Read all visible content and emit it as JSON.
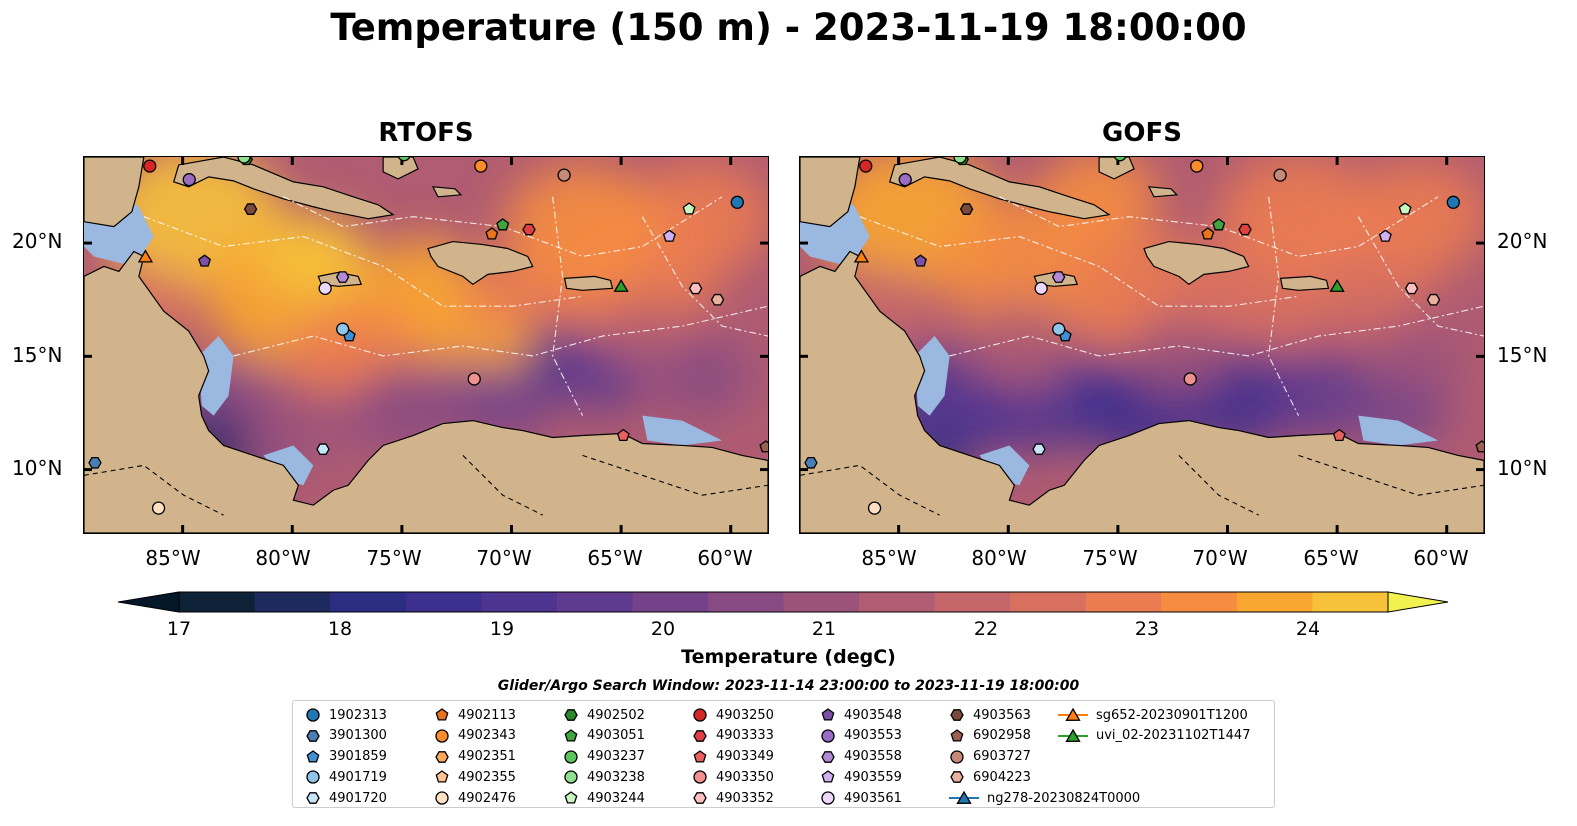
{
  "title": "Temperature (150 m) - 2023-11-19 18:00:00",
  "panels": [
    {
      "title": "RTOFS",
      "variant": "rtofs"
    },
    {
      "title": "GOFS",
      "variant": "gofs"
    }
  ],
  "axes": {
    "lon_ticks": [
      "85°W",
      "80°W",
      "75°W",
      "70°W",
      "65°W",
      "60°W"
    ],
    "lon_values": [
      -85,
      -80,
      -75,
      -70,
      -65,
      -60
    ],
    "lat_ticks": [
      "20°N",
      "15°N",
      "10°N"
    ],
    "lat_values": [
      20,
      15,
      10
    ],
    "lon_range": [
      -89.5,
      -58.3
    ],
    "lat_range": [
      7.2,
      23.8
    ]
  },
  "colorbar": {
    "label": "Temperature (degC)",
    "ticks": [
      "17",
      "18",
      "19",
      "20",
      "21",
      "22",
      "23",
      "24"
    ],
    "min": 17,
    "max": 24.5,
    "step": 0.5,
    "colors": [
      "#0d2236",
      "#1e2a5e",
      "#2a2d82",
      "#3c2f8e",
      "#4d3490",
      "#603a8e",
      "#744289",
      "#884a82",
      "#9c537a",
      "#b05c72",
      "#c4666a",
      "#d87060",
      "#ea7c52",
      "#f58d40",
      "#f9a630",
      "#f7c23a"
    ],
    "extend_low": "#05182a",
    "extend_high": "#f2f24f"
  },
  "legend": {
    "title": "Glider/Argo Search Window: 2023-11-14 23:00:00 to 2023-11-19 18:00:00",
    "entries": [
      {
        "label": "1902313",
        "marker": "circle",
        "color": "#1f77b4"
      },
      {
        "label": "3901300",
        "marker": "hexagon",
        "color": "#4a7fb5"
      },
      {
        "label": "3901859",
        "marker": "pentagon",
        "color": "#3f8fd2"
      },
      {
        "label": "4901719",
        "marker": "circle",
        "color": "#8ec5ea"
      },
      {
        "label": "4901720",
        "marker": "hexagon",
        "color": "#c6e6f8"
      },
      {
        "label": "4902113",
        "marker": "pentagon",
        "color": "#e8751a"
      },
      {
        "label": "4902343",
        "marker": "circle",
        "color": "#ff8c2a"
      },
      {
        "label": "4902351",
        "marker": "hexagon",
        "color": "#ffa85a"
      },
      {
        "label": "4902355",
        "marker": "pentagon",
        "color": "#ffc48f"
      },
      {
        "label": "4902476",
        "marker": "circle",
        "color": "#ffe0c2"
      },
      {
        "label": "4902502",
        "marker": "hexagon",
        "color": "#2a8a2a"
      },
      {
        "label": "4903051",
        "marker": "pentagon",
        "color": "#3fa63f"
      },
      {
        "label": "4903237",
        "marker": "circle",
        "color": "#5cc45c"
      },
      {
        "label": "4903238",
        "marker": "circle",
        "color": "#90e090"
      },
      {
        "label": "4903244",
        "marker": "pentagon",
        "color": "#c8f5c0"
      },
      {
        "label": "4903250",
        "marker": "circle",
        "color": "#d62728"
      },
      {
        "label": "4903333",
        "marker": "hexagon",
        "color": "#e04040"
      },
      {
        "label": "4903349",
        "marker": "pentagon",
        "color": "#e86060"
      },
      {
        "label": "4903350",
        "marker": "circle",
        "color": "#f09090"
      },
      {
        "label": "4903352",
        "marker": "hexagon",
        "color": "#fcc0c0"
      },
      {
        "label": "4903548",
        "marker": "pentagon",
        "color": "#7e4fa8"
      },
      {
        "label": "4903553",
        "marker": "circle",
        "color": "#9a6cc4"
      },
      {
        "label": "4903558",
        "marker": "hexagon",
        "color": "#b48ad8"
      },
      {
        "label": "4903559",
        "marker": "pentagon",
        "color": "#d0b0f0"
      },
      {
        "label": "4903561",
        "marker": "circle",
        "color": "#ecd8ff"
      },
      {
        "label": "4903563",
        "marker": "hexagon",
        "color": "#7a4a3a"
      },
      {
        "label": "6902958",
        "marker": "pentagon",
        "color": "#9a6050"
      },
      {
        "label": "6903727",
        "marker": "circle",
        "color": "#c88a78"
      },
      {
        "label": "6904223",
        "marker": "hexagon",
        "color": "#eab0a0"
      },
      {
        "label": "ng278-20230824T0000",
        "marker": "triangle-line",
        "color": "#1f77b4"
      },
      {
        "label": "sg652-20230901T1200",
        "marker": "triangle-line",
        "color": "#ff7f0e"
      },
      {
        "label": "uvi_02-20231102T1447",
        "marker": "triangle-line",
        "color": "#2ca02c"
      }
    ]
  },
  "map_markers": [
    {
      "id": "1902313",
      "lon": -59.7,
      "lat": 21.8
    },
    {
      "id": "3901300",
      "lon": -89.0,
      "lat": 10.3
    },
    {
      "id": "3901859",
      "lon": -77.4,
      "lat": 15.9
    },
    {
      "id": "4901719",
      "lon": -77.7,
      "lat": 16.2
    },
    {
      "id": "4901720",
      "lon": -78.6,
      "lat": 10.9
    },
    {
      "id": "4902113",
      "lon": -70.9,
      "lat": 20.4
    },
    {
      "id": "4902343",
      "lon": -71.4,
      "lat": 23.4
    },
    {
      "id": "4902476",
      "lon": -86.1,
      "lat": 8.3
    },
    {
      "id": "4902502",
      "lon": -82.1,
      "lat": 23.7
    },
    {
      "id": "4903051",
      "lon": -70.4,
      "lat": 20.8
    },
    {
      "id": "4903237",
      "lon": -74.9,
      "lat": 23.9
    },
    {
      "id": "4903238",
      "lon": -82.2,
      "lat": 23.8
    },
    {
      "id": "4903244",
      "lon": -61.9,
      "lat": 21.5
    },
    {
      "id": "4903250",
      "lon": -86.5,
      "lat": 23.4
    },
    {
      "id": "4903333",
      "lon": -69.2,
      "lat": 20.6
    },
    {
      "id": "4903349",
      "lon": -64.9,
      "lat": 11.5
    },
    {
      "id": "4903350",
      "lon": -71.7,
      "lat": 14.0
    },
    {
      "id": "4903352",
      "lon": -61.6,
      "lat": 18.0
    },
    {
      "id": "4903548",
      "lon": -84.0,
      "lat": 19.2
    },
    {
      "id": "4903553",
      "lon": -84.7,
      "lat": 22.8
    },
    {
      "id": "4903558",
      "lon": -77.7,
      "lat": 18.5
    },
    {
      "id": "4903559",
      "lon": -62.8,
      "lat": 20.3
    },
    {
      "id": "4903561",
      "lon": -78.5,
      "lat": 18.0
    },
    {
      "id": "4903563",
      "lon": -81.9,
      "lat": 21.5
    },
    {
      "id": "6902958",
      "lon": -58.4,
      "lat": 11.0
    },
    {
      "id": "6903727",
      "lon": -67.6,
      "lat": 23.0
    },
    {
      "id": "6904223",
      "lon": -60.6,
      "lat": 17.5
    },
    {
      "id": "sg652-20230901T1200",
      "lon": -86.7,
      "lat": 19.4
    },
    {
      "id": "uvi_02-20231102T1447",
      "lon": -65.0,
      "lat": 18.1
    }
  ]
}
